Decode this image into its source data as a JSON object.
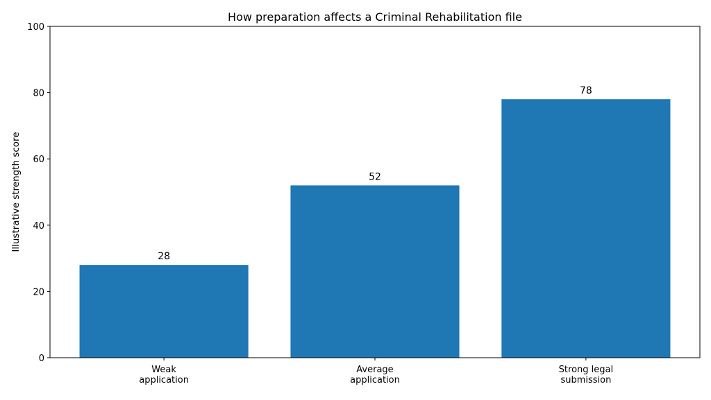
{
  "chart_data": {
    "type": "bar",
    "title": "How preparation affects a Criminal Rehabilitation file",
    "xlabel": "",
    "ylabel": "Illustrative strength score",
    "categories": [
      [
        "Weak",
        "application"
      ],
      [
        "Average",
        "application"
      ],
      [
        "Strong legal",
        "submission"
      ]
    ],
    "values": [
      28,
      52,
      78
    ],
    "data_labels": [
      "28",
      "52",
      "78"
    ],
    "ylim": [
      0,
      100
    ],
    "yticks": [
      0,
      20,
      40,
      60,
      80,
      100
    ],
    "ytick_labels": [
      "0",
      "20",
      "40",
      "60",
      "80",
      "100"
    ],
    "grid": false,
    "bar_color": "#1f77b4"
  }
}
